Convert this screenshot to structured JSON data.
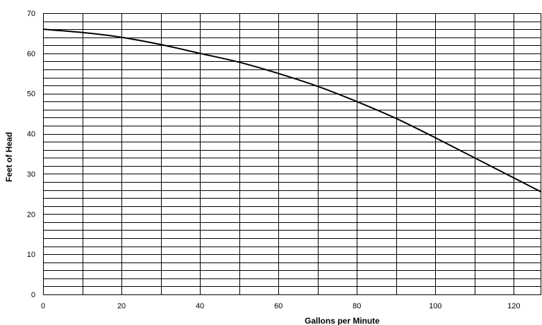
{
  "chart_data": {
    "type": "line",
    "title": "",
    "xlabel": "Gallons per Minute",
    "ylabel": "Feet of Head",
    "xlim": [
      0,
      127
    ],
    "ylim": [
      0,
      70
    ],
    "x_ticks": [
      0,
      20,
      40,
      60,
      80,
      100,
      120
    ],
    "y_ticks": [
      0,
      10,
      20,
      30,
      40,
      50,
      60,
      70
    ],
    "x_gridlines": [
      0,
      10,
      20,
      30,
      40,
      50,
      60,
      70,
      80,
      90,
      100,
      110,
      120
    ],
    "y_gridlines": [
      0,
      2,
      4,
      6,
      8,
      10,
      12,
      14,
      16,
      18,
      20,
      22,
      24,
      26,
      28,
      30,
      32,
      34,
      36,
      38,
      40,
      42,
      44,
      46,
      48,
      50,
      52,
      54,
      56,
      58,
      60,
      62,
      64,
      66,
      68,
      70
    ],
    "grid": true,
    "legend": "none",
    "series": [
      {
        "x": [
          0,
          10,
          20,
          30,
          40,
          50,
          60,
          70,
          80,
          90,
          100,
          110,
          120,
          127
        ],
        "y": [
          66,
          65.2,
          64,
          62.2,
          60,
          57.8,
          55,
          51.8,
          48,
          43.8,
          39,
          34,
          29,
          25.5
        ],
        "color": "#000000"
      }
    ]
  }
}
